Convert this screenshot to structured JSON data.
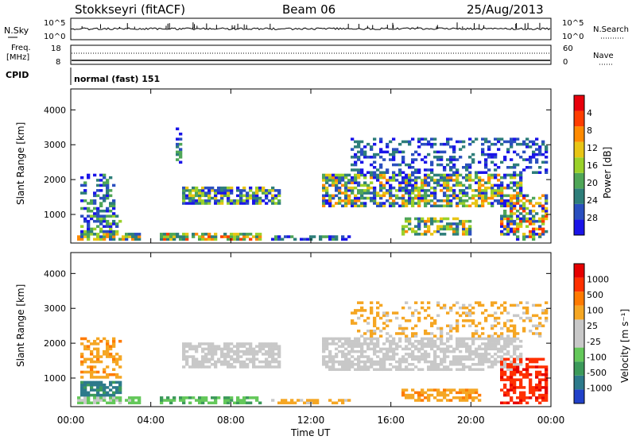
{
  "header": {
    "station": "Stokkseyri (fitACF)",
    "beam": "Beam 06",
    "date": "25/Aug/2013"
  },
  "aux_panels": {
    "nsky_label": "N.Sky",
    "nsky_tick_top": "10^5",
    "nsky_tick_bottom": "10^0",
    "nsearch_label": "N.Search",
    "freq_label_top": "Freq.",
    "freq_label_unit": "[MHz]",
    "freq_tick_top": "18",
    "freq_tick_bottom": "8",
    "nave_tick_top": "60",
    "nave_tick_bottom": "0",
    "nave_label": "Nave",
    "cpid_label": "CPID",
    "cpid_value": "normal (fast) 151"
  },
  "chart_data": [
    {
      "type": "heatmap",
      "name": "power",
      "ylabel": "Slant Range [km]",
      "ylim": [
        180,
        4600
      ],
      "yticks": [
        "1000",
        "2000",
        "3000",
        "4000"
      ],
      "colorbar_label": "Power [dB]",
      "colorbar_ticks": [
        "4",
        "8",
        "12",
        "16",
        "20",
        "24",
        "28"
      ],
      "colorscale": [
        "#1a14e8",
        "#2a4fbf",
        "#2e7e7a",
        "#4fa657",
        "#9ad12a",
        "#e8c515",
        "#ff8a00",
        "#ff3d00",
        "#e8000b"
      ]
    },
    {
      "type": "heatmap",
      "name": "velocity",
      "ylabel": "Slant Range [km]",
      "ylim": [
        180,
        4600
      ],
      "yticks": [
        "1000",
        "2000",
        "3000",
        "4000"
      ],
      "colorbar_label": "Velocity [m s⁻¹]",
      "colorbar_ticks": [
        "1000",
        "500",
        "100",
        "25",
        "-25",
        "-100",
        "-500",
        "-1000"
      ],
      "colorscale": [
        "#2141c9",
        "#2d7a8b",
        "#3c9a5a",
        "#64c85a",
        "#c8c8c8",
        "#c8c8c8",
        "#f5a623",
        "#ff7a00",
        "#ff3000",
        "#e60000"
      ]
    }
  ],
  "time_axis": {
    "label": "Time UT",
    "ticks": [
      "00:00",
      "04:00",
      "08:00",
      "12:00",
      "16:00",
      "20:00",
      "00:00"
    ]
  }
}
